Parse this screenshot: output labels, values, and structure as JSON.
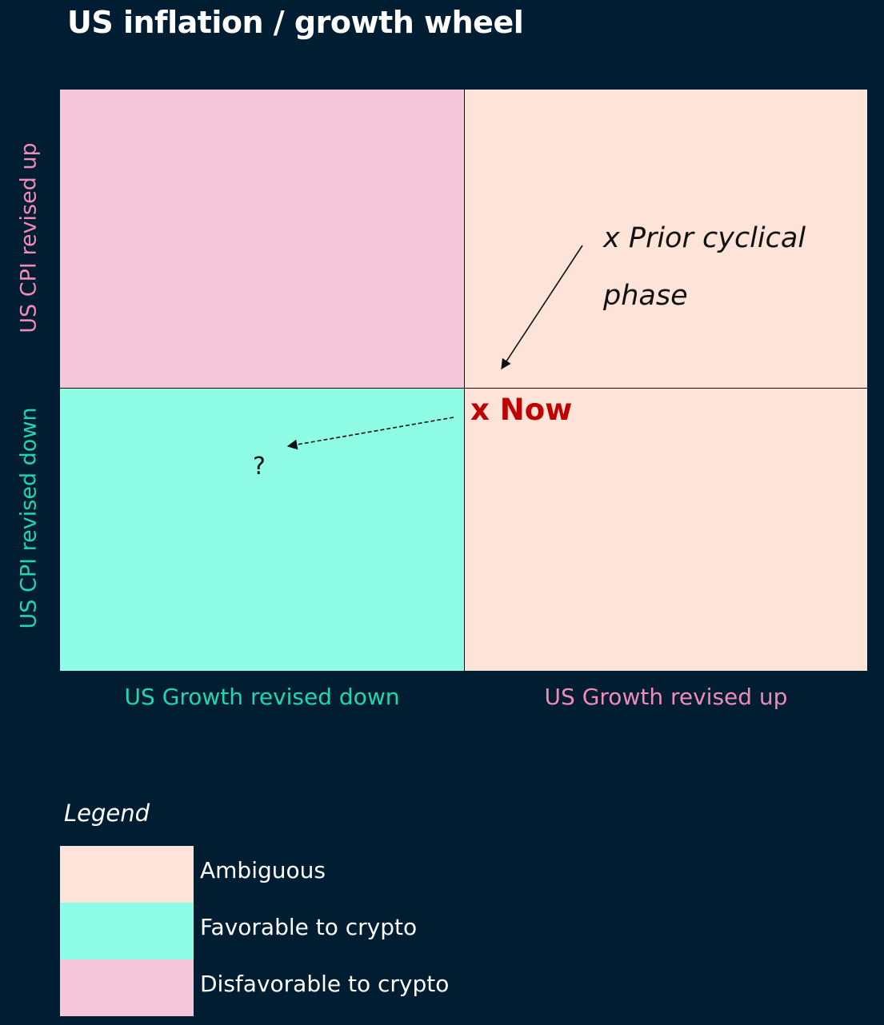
{
  "title": "US inflation / growth wheel",
  "colors": {
    "ambiguous": "#fde3d8",
    "favorable": "#8ffde6",
    "disfavorable": "#f5c6da",
    "label_pink": "#f08bb7",
    "label_teal": "#1fd6b0",
    "now_red": "#c00000"
  },
  "axes": {
    "y_up": "US CPI revised up",
    "y_down": "US CPI revised down",
    "x_down": "US Growth revised down",
    "x_up": "US Growth revised up"
  },
  "annotations": {
    "prior": "x Prior cyclical phase",
    "now": "x Now",
    "question": "?"
  },
  "legend": {
    "title": "Legend",
    "items": [
      {
        "label": "Ambiguous",
        "color": "#fde3d8"
      },
      {
        "label": "Favorable to crypto",
        "color": "#8ffde6"
      },
      {
        "label": "Disfavorable to crypto",
        "color": "#f5c6da"
      }
    ]
  }
}
